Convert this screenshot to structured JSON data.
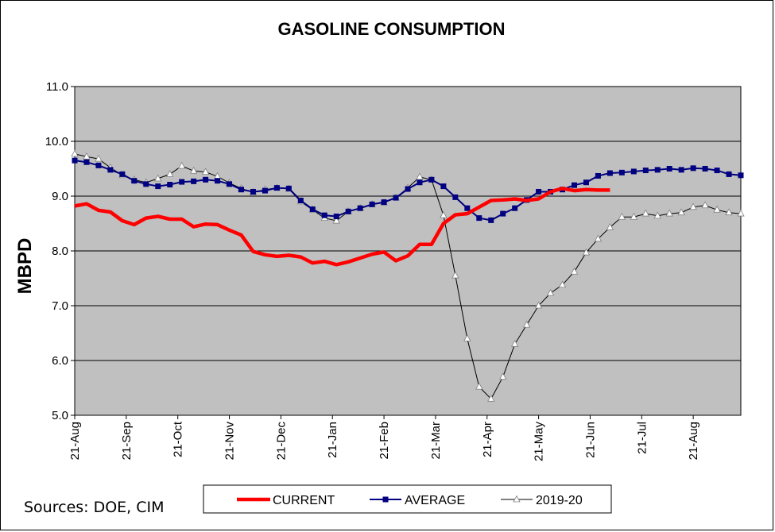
{
  "chart_data": {
    "type": "line",
    "title": "GASOLINE CONSUMPTION",
    "ylabel": "MBPD",
    "xlabel": "",
    "ylim": [
      5.0,
      11.0
    ],
    "y_ticks": [
      "5.0",
      "6.0",
      "7.0",
      "8.0",
      "9.0",
      "10.0",
      "11.0"
    ],
    "x_tick_labels": [
      "21-Aug",
      "21-Sep",
      "21-Oct",
      "21-Nov",
      "21-Dec",
      "21-Jan",
      "21-Feb",
      "21-Mar",
      "21-Apr",
      "21-May",
      "21-Jun",
      "21-Jul",
      "21-Aug"
    ],
    "x_week_range": [
      0,
      56
    ],
    "grid": "horizontal",
    "plot_background": "#c0c0c0",
    "legend_position": "bottom",
    "series": [
      {
        "name": "CURRENT",
        "color": "#ff0000",
        "style": "thick-line",
        "x": [
          0,
          1,
          2,
          3,
          4,
          5,
          6,
          7,
          8,
          9,
          10,
          11,
          12,
          13,
          14,
          15,
          16,
          17,
          18,
          19,
          20,
          21,
          22,
          23,
          24,
          25,
          26,
          27,
          28,
          29,
          30,
          31,
          32,
          33,
          34,
          35,
          36,
          37,
          38,
          39,
          40,
          41,
          42,
          43,
          44,
          45
        ],
        "values": [
          8.82,
          8.86,
          8.74,
          8.71,
          8.55,
          8.48,
          8.6,
          8.63,
          8.58,
          8.58,
          8.44,
          8.49,
          8.48,
          8.38,
          8.29,
          7.99,
          7.93,
          7.9,
          7.92,
          7.89,
          7.78,
          7.81,
          7.75,
          7.8,
          7.87,
          7.94,
          7.98,
          7.82,
          7.91,
          8.12,
          8.12,
          8.5,
          8.66,
          8.68,
          8.8,
          8.92,
          8.93,
          8.95,
          8.92,
          8.95,
          9.08,
          9.14,
          9.1,
          9.12,
          9.11,
          9.11
        ]
      },
      {
        "name": "AVERAGE",
        "color": "#000080",
        "style": "line-square-markers",
        "x": [
          0,
          1,
          2,
          3,
          4,
          5,
          6,
          7,
          8,
          9,
          10,
          11,
          12,
          13,
          14,
          15,
          16,
          17,
          18,
          19,
          20,
          21,
          22,
          23,
          24,
          25,
          26,
          27,
          28,
          29,
          30,
          31,
          32,
          33,
          34,
          35,
          36,
          37,
          38,
          39,
          40,
          41,
          42,
          43,
          44,
          45,
          46,
          47,
          48,
          49,
          50,
          51,
          52,
          53,
          54,
          55,
          56
        ],
        "values": [
          9.65,
          9.62,
          9.56,
          9.48,
          9.4,
          9.28,
          9.22,
          9.18,
          9.21,
          9.26,
          9.27,
          9.3,
          9.28,
          9.22,
          9.12,
          9.08,
          9.1,
          9.15,
          9.14,
          8.92,
          8.76,
          8.65,
          8.63,
          8.72,
          8.78,
          8.85,
          8.89,
          8.97,
          9.13,
          9.25,
          9.3,
          9.18,
          8.98,
          8.78,
          8.6,
          8.56,
          8.68,
          8.78,
          8.93,
          9.08,
          9.08,
          9.12,
          9.2,
          9.25,
          9.37,
          9.42,
          9.43,
          9.45,
          9.47,
          9.48,
          9.5,
          9.48,
          9.51,
          9.5,
          9.47,
          9.4,
          9.38
        ]
      },
      {
        "name": "2019-20",
        "color": "#000000",
        "style": "thin-line-triangle-markers",
        "x": [
          0,
          1,
          2,
          3,
          4,
          5,
          6,
          7,
          8,
          9,
          10,
          11,
          12,
          13,
          14,
          15,
          16,
          17,
          18,
          19,
          20,
          21,
          22,
          23,
          24,
          25,
          26,
          27,
          28,
          29,
          30,
          31,
          32,
          33,
          34,
          35,
          36,
          37,
          38,
          39,
          40,
          41,
          42,
          43,
          44,
          45,
          46,
          47,
          48,
          49,
          50,
          51,
          52,
          53,
          54,
          55,
          56
        ],
        "values": [
          9.77,
          9.72,
          9.68,
          9.52,
          9.38,
          9.3,
          9.25,
          9.32,
          9.4,
          9.55,
          9.46,
          9.44,
          9.36,
          9.24,
          9.14,
          9.07,
          9.12,
          9.15,
          9.13,
          8.9,
          8.75,
          8.6,
          8.55,
          8.72,
          8.78,
          8.85,
          8.88,
          8.97,
          9.15,
          9.35,
          9.3,
          8.65,
          7.55,
          6.4,
          5.52,
          5.3,
          5.7,
          6.3,
          6.65,
          7.0,
          7.23,
          7.38,
          7.62,
          7.97,
          8.22,
          8.43,
          8.62,
          8.62,
          8.68,
          8.64,
          8.68,
          8.7,
          8.8,
          8.83,
          8.75,
          8.7,
          8.68
        ]
      }
    ]
  },
  "legend": {
    "items": [
      "CURRENT",
      "AVERAGE",
      "2019-20"
    ]
  },
  "sources": "Sources:  DOE, CIM"
}
